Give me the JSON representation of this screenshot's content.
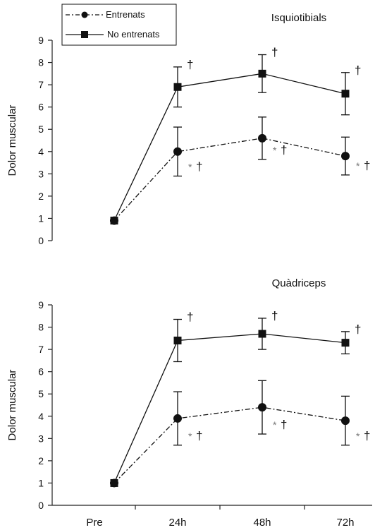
{
  "legend": [
    {
      "name": "Entrenats",
      "marker": "circle",
      "dash": "dash-dot"
    },
    {
      "name": "No entrenats",
      "marker": "square",
      "dash": "solid"
    }
  ],
  "categories": [
    "Pre",
    "24h",
    "48h",
    "72h"
  ],
  "chart_data": [
    {
      "type": "line",
      "title": "Isquiotibials",
      "ylabel": "Dolor muscular",
      "xlabel": "",
      "ylim": [
        0,
        9
      ],
      "yticks": [
        0,
        1,
        2,
        3,
        4,
        5,
        6,
        7,
        8,
        9
      ],
      "categories": [
        "Pre",
        "24h",
        "48h",
        "72h"
      ],
      "series": [
        {
          "name": "Entrenats",
          "values": [
            0.9,
            4.0,
            4.6,
            3.8
          ],
          "err": [
            0,
            1.1,
            0.95,
            0.85
          ],
          "markers": [
            "",
            "* †",
            "* †",
            "* †"
          ]
        },
        {
          "name": "No entrenats",
          "values": [
            0.9,
            6.9,
            7.5,
            6.6
          ],
          "err": [
            0,
            0.9,
            0.85,
            0.95
          ],
          "markers": [
            "",
            "†",
            "†",
            "†"
          ]
        }
      ]
    },
    {
      "type": "line",
      "title": "Quàdriceps",
      "ylabel": "Dolor muscular",
      "xlabel": "",
      "ylim": [
        0,
        9
      ],
      "yticks": [
        0,
        1,
        2,
        3,
        4,
        5,
        6,
        7,
        8,
        9
      ],
      "categories": [
        "Pre",
        "24h",
        "48h",
        "72h"
      ],
      "series": [
        {
          "name": "Entrenats",
          "values": [
            1.0,
            3.9,
            4.4,
            3.8
          ],
          "err": [
            0,
            1.2,
            1.2,
            1.1
          ],
          "markers": [
            "",
            "* †",
            "* †",
            "* †"
          ]
        },
        {
          "name": "No entrenats",
          "values": [
            1.0,
            7.4,
            7.7,
            7.3
          ],
          "err": [
            0,
            0.95,
            0.7,
            0.5
          ],
          "markers": [
            "",
            "†",
            "†",
            "†"
          ]
        }
      ]
    }
  ],
  "colors": {
    "line": "#111111",
    "axis": "#222222",
    "annotation_star": "#777777"
  }
}
